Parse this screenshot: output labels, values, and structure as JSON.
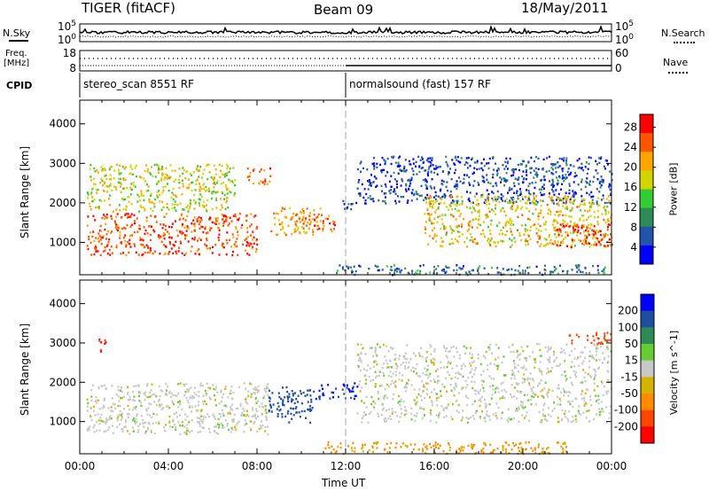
{
  "header": {
    "radar": "TIGER (fitACF)",
    "beam": "Beam 09",
    "date": "18/May/2011"
  },
  "nsky_panel": {
    "left_label": "N.Sky",
    "right_label": "N.Search",
    "left_ticks": [
      "10^5",
      "10^0"
    ],
    "right_ticks": [
      "10^5",
      "10^0"
    ]
  },
  "freq_panel": {
    "left_label_line1": "Freq.",
    "left_label_line2": "[MHz]",
    "right_label": "Nave",
    "left_ticks": [
      "18",
      "8"
    ],
    "right_ticks": [
      "60",
      "0"
    ]
  },
  "cpid": {
    "label": "CPID",
    "programs": [
      {
        "name": "stereo_scan 8551 RF",
        "start_hour": 0
      },
      {
        "name": "normalsound (fast) 157 RF",
        "start_hour": 12
      }
    ]
  },
  "time_axis": {
    "label": "Time UT",
    "ticks": [
      "00:00",
      "04:00",
      "08:00",
      "12:00",
      "16:00",
      "20:00",
      "00:00"
    ],
    "range_hours": [
      0,
      24
    ]
  },
  "chart_data": [
    {
      "type": "heatmap",
      "name": "power-panel",
      "ylabel": "Slant Range [km]",
      "yticks": [
        1000,
        2000,
        3000,
        4000
      ],
      "ylim": [
        180,
        4600
      ],
      "colorbar": {
        "label": "Power [dB]",
        "ticks": [
          4,
          8,
          12,
          16,
          20,
          24,
          28
        ],
        "range": [
          0,
          30
        ],
        "colors": [
          "#0000ff",
          "#2255aa",
          "#2e8b57",
          "#33cc33",
          "#d4d400",
          "#ffa500",
          "#ff5500",
          "#ff0000"
        ]
      },
      "regions": [
        {
          "t": [
            0.3,
            8.0
          ],
          "r": [
            700,
            1750
          ],
          "value": 27
        },
        {
          "t": [
            0.3,
            7.0
          ],
          "r": [
            1800,
            3000
          ],
          "value": 18
        },
        {
          "t": [
            7.5,
            8.6
          ],
          "r": [
            2500,
            2900
          ],
          "value": 25
        },
        {
          "t": [
            8.6,
            11.0
          ],
          "r": [
            1200,
            1900
          ],
          "value": 22
        },
        {
          "t": [
            10.0,
            11.5
          ],
          "r": [
            1300,
            1700
          ],
          "value": 26
        },
        {
          "t": [
            11.8,
            12.5
          ],
          "r": [
            1800,
            2100
          ],
          "value": 6
        },
        {
          "t": [
            12.5,
            24.0
          ],
          "r": [
            2000,
            3200
          ],
          "value": 5
        },
        {
          "t": [
            15.5,
            24.0
          ],
          "r": [
            900,
            2200
          ],
          "value": 20
        },
        {
          "t": [
            21.5,
            24.0
          ],
          "r": [
            900,
            1500
          ],
          "value": 28
        },
        {
          "t": [
            11.5,
            24.0
          ],
          "r": [
            200,
            450
          ],
          "value": 8
        }
      ]
    },
    {
      "type": "heatmap",
      "name": "velocity-panel",
      "ylabel": "Slant Range [km]",
      "yticks": [
        1000,
        2000,
        3000,
        4000
      ],
      "ylim": [
        180,
        4600
      ],
      "colorbar": {
        "label": "Velocity [m s^-1]",
        "ticks": [
          200,
          100,
          50,
          15,
          -15,
          -50,
          -100,
          -200
        ],
        "colors": [
          "#0000ff",
          "#1d4fa0",
          "#2e8b57",
          "#66cc33",
          "#c8c8c8",
          "#d4b400",
          "#ff8c00",
          "#ff4500",
          "#ff0000"
        ]
      },
      "regions": [
        {
          "t": [
            0.3,
            8.5
          ],
          "r": [
            700,
            2000
          ],
          "value": 0
        },
        {
          "t": [
            8.5,
            10.5
          ],
          "r": [
            1000,
            1900
          ],
          "value": 120
        },
        {
          "t": [
            10.5,
            12.5
          ],
          "r": [
            1600,
            2000
          ],
          "value": 200
        },
        {
          "t": [
            12.5,
            24.0
          ],
          "r": [
            1000,
            3000
          ],
          "value": 0
        },
        {
          "t": [
            11.0,
            22.0
          ],
          "r": [
            200,
            500
          ],
          "value": -60
        },
        {
          "t": [
            0.8,
            1.2
          ],
          "r": [
            2800,
            3200
          ],
          "value": -200
        },
        {
          "t": [
            22.0,
            24.0
          ],
          "r": [
            3000,
            3300
          ],
          "value": -150
        }
      ]
    }
  ]
}
